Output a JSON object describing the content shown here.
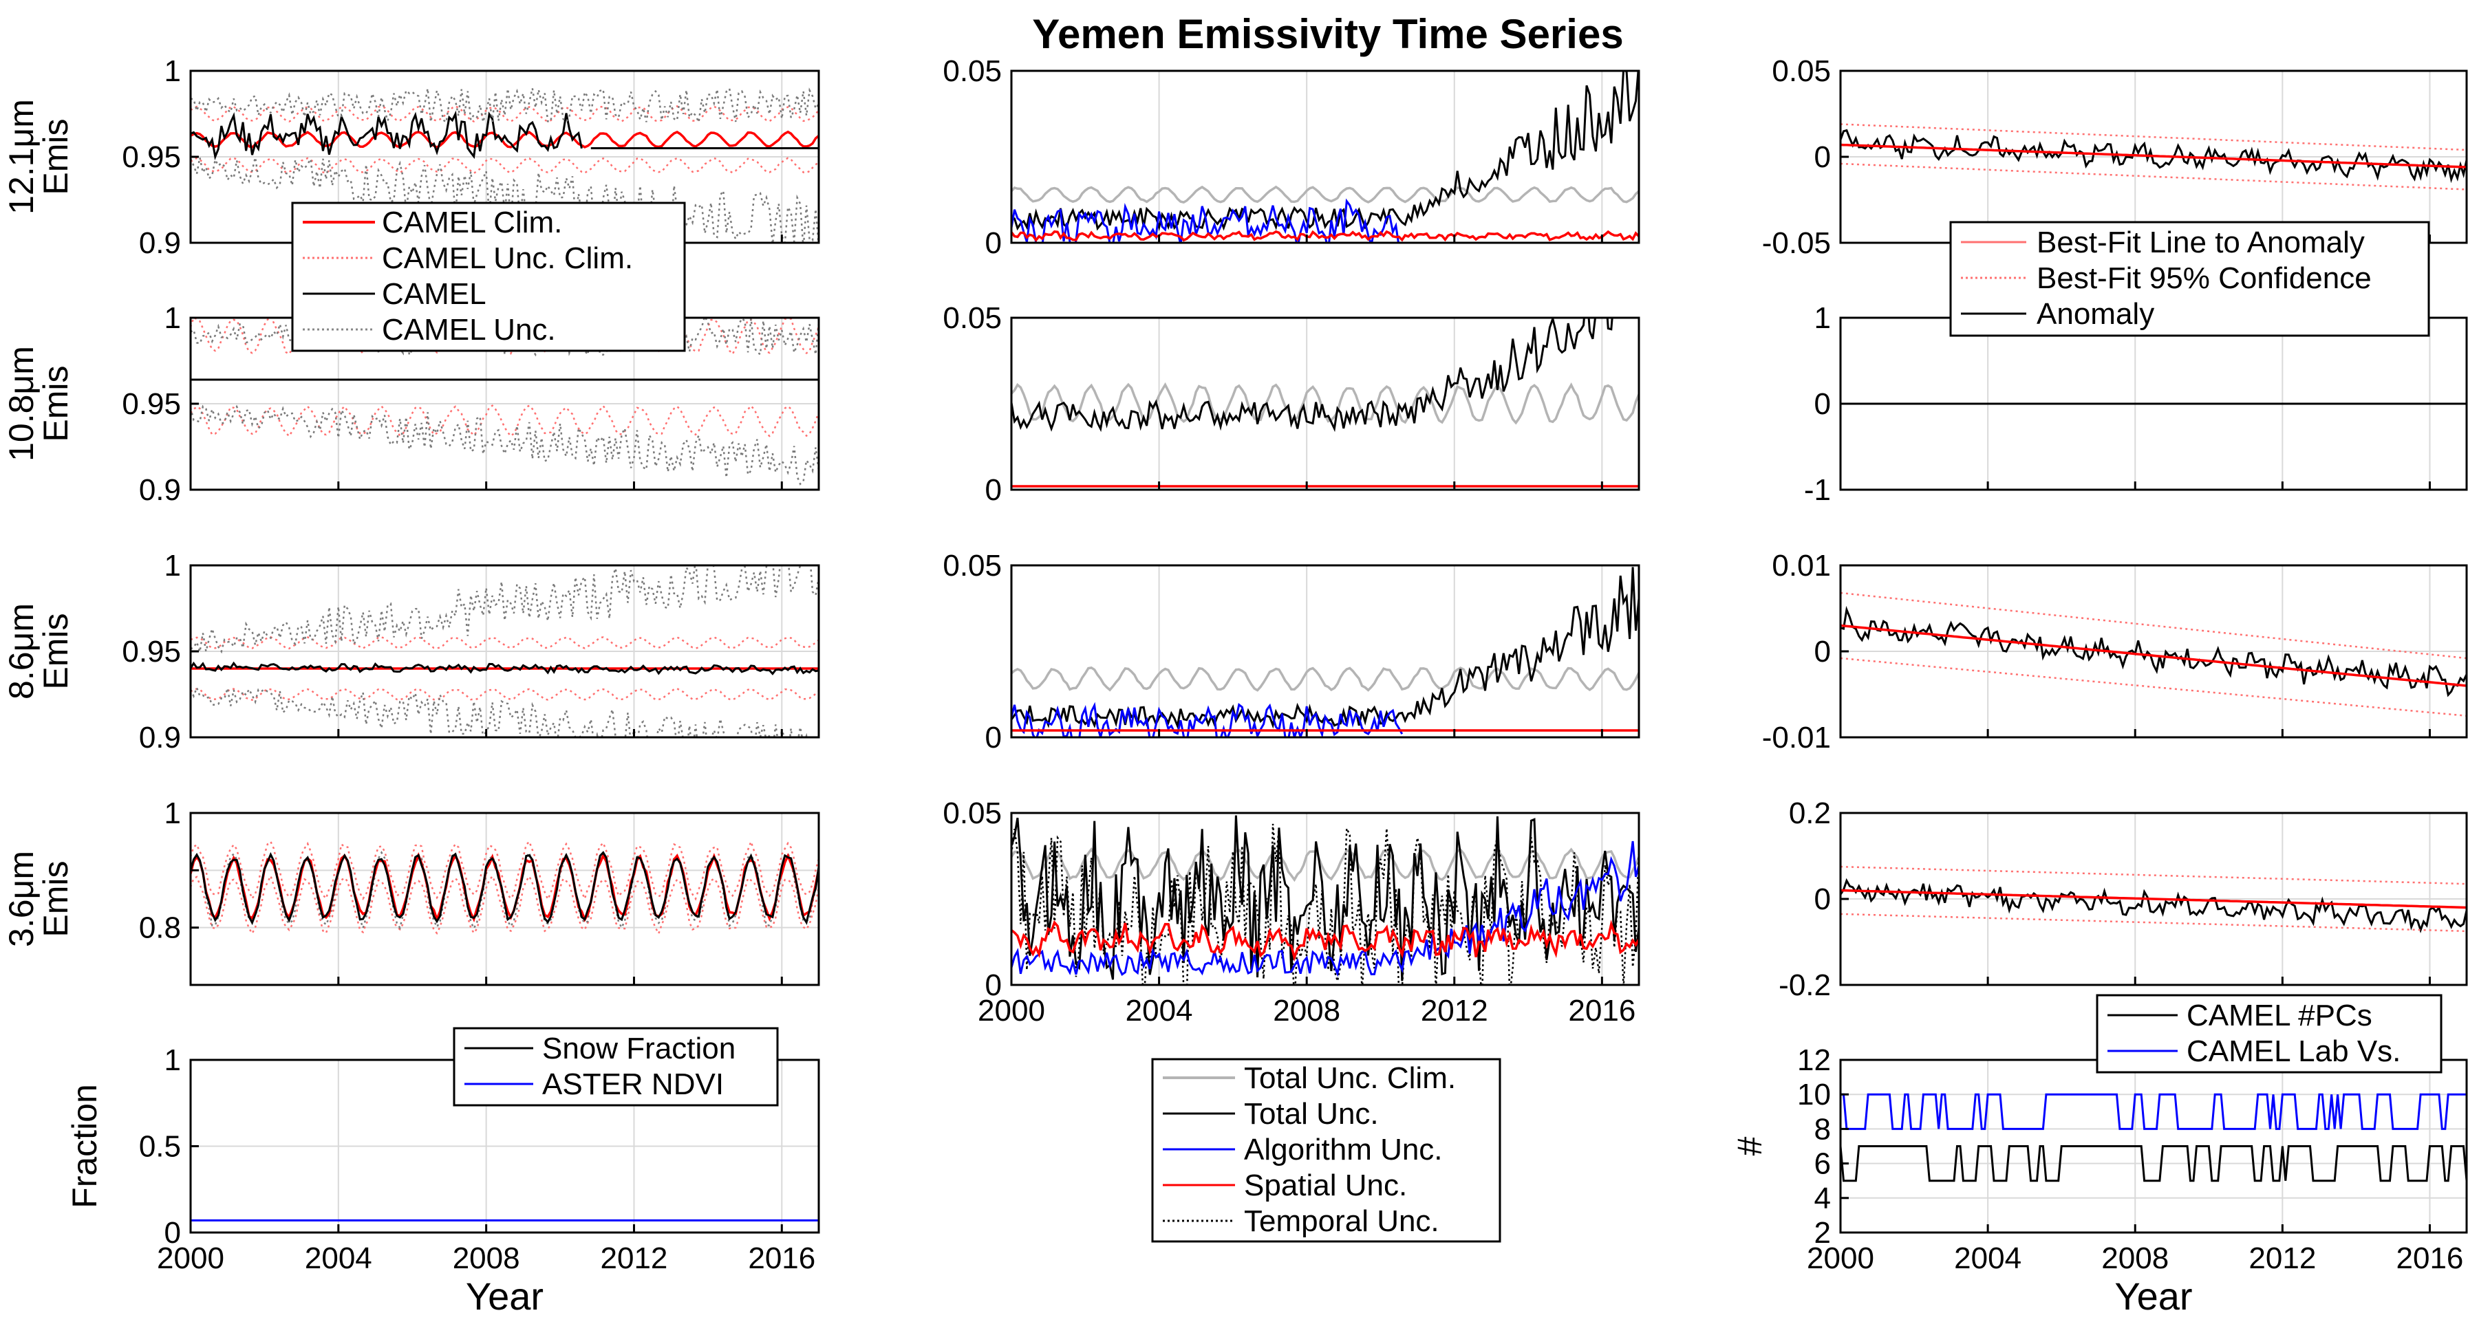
{
  "title": "Yemen Emissivity Time Series",
  "colors": {
    "black": "#000000",
    "red": "#ff0000",
    "lightred": "#ff7070",
    "blue": "#0000ff",
    "gray": "#b4b4b4",
    "grid": "#d9d9d9",
    "navy": "#000080"
  },
  "chart_data": [
    {
      "id": "p11",
      "type": "line",
      "ylabel": "12.1μm Emis",
      "ylabel_lines": [
        "12.1μm",
        "Emis"
      ],
      "ylim": [
        0.9,
        1.0
      ],
      "yticks": [
        0.9,
        0.95,
        1.0
      ],
      "ytick_labels": [
        "0.9",
        "0.95",
        "1"
      ],
      "xlim": [
        2000,
        2017
      ],
      "series": [
        {
          "name": "CAMEL Clim.",
          "style": "red",
          "kind": "seasonal",
          "base": 0.96,
          "amp": 0.004
        },
        {
          "name": "CAMEL Unc. Clim. (upper)",
          "style": "reddot",
          "kind": "seasonal",
          "base": 0.975,
          "amp": 0.004
        },
        {
          "name": "CAMEL Unc. Clim. (lower)",
          "style": "reddot",
          "kind": "seasonal",
          "base": 0.945,
          "amp": 0.004
        },
        {
          "name": "CAMEL",
          "style": "black",
          "kind": "noisy",
          "base": 0.963,
          "amp": 0.01,
          "end": 2010.6
        },
        {
          "name": "CAMEL (flat)",
          "style": "black",
          "kind": "flat",
          "base": 0.955,
          "start": 2010.8
        },
        {
          "name": "CAMEL Unc. (upper)",
          "style": "graydot",
          "kind": "spread",
          "base": 0.98,
          "amp": 0.01,
          "trend": 0.0
        },
        {
          "name": "CAMEL Unc. (lower)",
          "style": "graydot",
          "kind": "spread",
          "base": 0.945,
          "amp": 0.015,
          "trend": -0.002
        }
      ]
    },
    {
      "id": "p12",
      "type": "line",
      "ylim": [
        0,
        0.05
      ],
      "yticks": [
        0,
        0.05
      ],
      "ytick_labels": [
        "0",
        "0.05"
      ],
      "xlim": [
        2000,
        2017
      ],
      "series": [
        {
          "name": "Total Unc. Clim.",
          "style": "gray",
          "kind": "seasonal",
          "base": 0.014,
          "amp": 0.002
        },
        {
          "name": "Total Unc.",
          "style": "black",
          "kind": "growth",
          "base": 0.006,
          "amp": 0.006,
          "late": 0.04
        },
        {
          "name": "Algorithm Unc.",
          "style": "blue",
          "kind": "noisy",
          "base": 0.005,
          "amp": 0.006,
          "end": 2010.6
        },
        {
          "name": "Spatial Unc.",
          "style": "red",
          "kind": "noisy",
          "base": 0.002,
          "amp": 0.001
        }
      ]
    },
    {
      "id": "p13",
      "type": "line",
      "ylim": [
        -0.05,
        0.05
      ],
      "yticks": [
        -0.05,
        0,
        0.05
      ],
      "ytick_labels": [
        "-0.05",
        "0",
        "0.05"
      ],
      "xlim": [
        2000,
        2017
      ],
      "series": [
        {
          "name": "Anomaly",
          "style": "black",
          "kind": "noisy",
          "base": 0.008,
          "amp": 0.006,
          "trend": -0.0009
        },
        {
          "name": "Best-Fit Line to Anomaly",
          "style": "red",
          "kind": "line",
          "y0": 0.007,
          "y1": -0.006
        },
        {
          "name": "Best-Fit 95% Confidence (upper)",
          "style": "reddot",
          "kind": "line",
          "y0": 0.019,
          "y1": 0.004
        },
        {
          "name": "Best-Fit 95% Confidence (lower)",
          "style": "reddot",
          "kind": "line",
          "y0": -0.004,
          "y1": -0.019
        }
      ]
    },
    {
      "id": "p21",
      "type": "line",
      "ylabel": "10.8μm Emis",
      "ylabel_lines": [
        "10.8μm",
        "Emis"
      ],
      "ylim": [
        0.9,
        1.0
      ],
      "yticks": [
        0.9,
        0.95,
        1.0
      ],
      "ytick_labels": [
        "0.9",
        "0.95",
        "1"
      ],
      "xlim": [
        2000,
        2017
      ],
      "series": [
        {
          "name": "CAMEL Clim.",
          "style": "black",
          "kind": "flat",
          "base": 0.964
        },
        {
          "name": "CAMEL Unc. Clim. (upper)",
          "style": "reddot",
          "kind": "seasonal",
          "base": 0.99,
          "amp": 0.01
        },
        {
          "name": "CAMEL Unc. Clim. (lower)",
          "style": "reddot",
          "kind": "seasonal",
          "base": 0.94,
          "amp": 0.008
        },
        {
          "name": "CAMEL Unc. (upper)",
          "style": "graydot",
          "kind": "spread",
          "base": 0.99,
          "amp": 0.012,
          "trend": 0.0
        },
        {
          "name": "CAMEL Unc. (lower)",
          "style": "graydot",
          "kind": "spread",
          "base": 0.945,
          "amp": 0.012,
          "trend": -0.0018
        }
      ]
    },
    {
      "id": "p22",
      "type": "line",
      "ylim": [
        0,
        0.05
      ],
      "yticks": [
        0,
        0.05
      ],
      "ytick_labels": [
        "0",
        "0.05"
      ],
      "xlim": [
        2000,
        2017
      ],
      "series": [
        {
          "name": "Total Unc. Clim.",
          "style": "gray",
          "kind": "seasonal",
          "base": 0.025,
          "amp": 0.005
        },
        {
          "name": "Total Unc.",
          "style": "black",
          "kind": "growth",
          "base": 0.02,
          "amp": 0.008,
          "late": 0.04
        },
        {
          "name": "Spatial Unc.",
          "style": "red",
          "kind": "flat",
          "base": 0.001
        }
      ]
    },
    {
      "id": "p23",
      "type": "line",
      "ylim": [
        -1,
        1
      ],
      "yticks": [
        -1,
        0,
        1
      ],
      "ytick_labels": [
        "-1",
        "0",
        "1"
      ],
      "xlim": [
        2000,
        2017
      ],
      "series": [
        {
          "name": "Anomaly",
          "style": "black",
          "kind": "flat",
          "base": 0
        }
      ]
    },
    {
      "id": "p31",
      "type": "line",
      "ylabel": "8.6μm Emis",
      "ylabel_lines": [
        "8.6μm",
        "Emis"
      ],
      "ylim": [
        0.9,
        1.0
      ],
      "yticks": [
        0.9,
        0.95,
        1.0
      ],
      "ytick_labels": [
        "0.9",
        "0.95",
        "1"
      ],
      "xlim": [
        2000,
        2017
      ],
      "series": [
        {
          "name": "CAMEL Unc. Clim. (upper)",
          "style": "reddot",
          "kind": "seasonal",
          "base": 0.955,
          "amp": 0.003
        },
        {
          "name": "CAMEL Unc. Clim. (lower)",
          "style": "reddot",
          "kind": "seasonal",
          "base": 0.925,
          "amp": 0.003
        },
        {
          "name": "CAMEL Unc. (upper)",
          "style": "graydot",
          "kind": "spread",
          "base": 0.955,
          "amp": 0.015,
          "trend": 0.0025
        },
        {
          "name": "CAMEL Unc. (lower)",
          "style": "graydot",
          "kind": "spread",
          "base": 0.925,
          "amp": 0.012,
          "trend": -0.0018
        },
        {
          "name": "CAMEL Clim.",
          "style": "red",
          "kind": "flat",
          "base": 0.94
        },
        {
          "name": "CAMEL",
          "style": "black",
          "kind": "noisy",
          "base": 0.941,
          "amp": 0.002,
          "trend": -0.0001
        }
      ]
    },
    {
      "id": "p32",
      "type": "line",
      "ylim": [
        0,
        0.05
      ],
      "yticks": [
        0,
        0.05
      ],
      "ytick_labels": [
        "0",
        "0.05"
      ],
      "xlim": [
        2000,
        2017
      ],
      "series": [
        {
          "name": "Total Unc. Clim.",
          "style": "gray",
          "kind": "seasonal",
          "base": 0.017,
          "amp": 0.003
        },
        {
          "name": "Total Unc.",
          "style": "black",
          "kind": "growth",
          "base": 0.005,
          "amp": 0.006,
          "late": 0.035
        },
        {
          "name": "Algorithm Unc.",
          "style": "blue",
          "kind": "noisy",
          "base": 0.004,
          "amp": 0.005,
          "end": 2010.6
        },
        {
          "name": "Spatial Unc.",
          "style": "red",
          "kind": "flat",
          "base": 0.002
        }
      ]
    },
    {
      "id": "p33",
      "type": "line",
      "ylim": [
        -0.01,
        0.01
      ],
      "yticks": [
        -0.01,
        0,
        0.01
      ],
      "ytick_labels": [
        "-0.01",
        "0",
        "0.01"
      ],
      "xlim": [
        2000,
        2017
      ],
      "series": [
        {
          "name": "Anomaly",
          "style": "black",
          "kind": "noisy",
          "base": 0.003,
          "amp": 0.0015,
          "trend": -0.0004
        },
        {
          "name": "Best-Fit Line to Anomaly",
          "style": "red",
          "kind": "line",
          "y0": 0.003,
          "y1": -0.004
        },
        {
          "name": "Best-Fit 95% Confidence (upper)",
          "style": "reddot",
          "kind": "line",
          "y0": 0.0068,
          "y1": -0.0008
        },
        {
          "name": "Best-Fit 95% Confidence (lower)",
          "style": "reddot",
          "kind": "line",
          "y0": -0.0008,
          "y1": -0.0075
        }
      ]
    },
    {
      "id": "p41",
      "type": "line",
      "ylabel": "3.6μm Emis",
      "ylabel_lines": [
        "3.6μm",
        "Emis"
      ],
      "ylim": [
        0.7,
        1.0
      ],
      "yticks": [
        0.8,
        0.9,
        1.0
      ],
      "ytick_labels": [
        "0.8",
        "",
        "1"
      ],
      "xlim": [
        2000,
        2017
      ],
      "series": [
        {
          "name": "CAMEL Unc. Clim. (upper)",
          "style": "reddot",
          "kind": "seasonal",
          "base": 0.9,
          "amp": 0.045
        },
        {
          "name": "CAMEL Unc. Clim. (lower)",
          "style": "reddot",
          "kind": "seasonal",
          "base": 0.84,
          "amp": 0.045
        },
        {
          "name": "CAMEL Unc.",
          "style": "graydot",
          "kind": "seasonal",
          "base": 0.865,
          "amp": 0.06
        },
        {
          "name": "CAMEL Clim.",
          "style": "red",
          "kind": "seasonal",
          "base": 0.87,
          "amp": 0.05
        },
        {
          "name": "CAMEL",
          "style": "black",
          "kind": "seasonal",
          "base": 0.87,
          "amp": 0.055
        }
      ]
    },
    {
      "id": "p42",
      "type": "line",
      "ylim": [
        0,
        0.05
      ],
      "yticks": [
        0,
        0.05
      ],
      "ytick_labels": [
        "0",
        "0.05"
      ],
      "xlim": [
        2000,
        2017
      ],
      "xticks": [
        2000,
        2004,
        2008,
        2012,
        2016
      ],
      "xtick_labels": [
        "2000",
        "2004",
        "2008",
        "2012",
        "2016"
      ],
      "series": [
        {
          "name": "Total Unc. Clim.",
          "style": "gray",
          "kind": "seasonal",
          "base": 0.035,
          "amp": 0.004
        },
        {
          "name": "Temporal Unc.",
          "style": "blackdot",
          "kind": "spiky",
          "base": 0.02,
          "amp": 0.02
        },
        {
          "name": "Total Unc.",
          "style": "black",
          "kind": "spiky",
          "base": 0.025,
          "amp": 0.018
        },
        {
          "name": "Algorithm Unc.",
          "style": "blue",
          "kind": "growth",
          "base": 0.005,
          "amp": 0.007,
          "late": 0.03
        },
        {
          "name": "Spatial Unc.",
          "style": "red",
          "kind": "noisy",
          "base": 0.013,
          "amp": 0.004
        }
      ]
    },
    {
      "id": "p43",
      "type": "line",
      "ylim": [
        -0.2,
        0.2
      ],
      "yticks": [
        -0.2,
        0,
        0.2
      ],
      "ytick_labels": [
        "-0.2",
        "0",
        "0.2"
      ],
      "xlim": [
        2000,
        2017
      ],
      "series": [
        {
          "name": "Anomaly",
          "style": "black",
          "kind": "noisy",
          "base": 0.02,
          "amp": 0.025,
          "trend": -0.004
        },
        {
          "name": "Best-Fit Line to Anomaly",
          "style": "red",
          "kind": "line",
          "y0": 0.02,
          "y1": -0.02
        },
        {
          "name": "Best-Fit 95% Confidence (upper)",
          "style": "reddot",
          "kind": "line",
          "y0": 0.075,
          "y1": 0.035
        },
        {
          "name": "Best-Fit 95% Confidence (lower)",
          "style": "reddot",
          "kind": "line",
          "y0": -0.035,
          "y1": -0.075
        }
      ]
    },
    {
      "id": "p51",
      "type": "line",
      "ylabel": "Fraction",
      "ylabel_lines": [
        "Fraction"
      ],
      "xlabel": "Year",
      "ylim": [
        0,
        1
      ],
      "yticks": [
        0,
        0.5,
        1
      ],
      "ytick_labels": [
        "0",
        "0.5",
        "1"
      ],
      "xlim": [
        2000,
        2017
      ],
      "xticks": [
        2000,
        2004,
        2008,
        2012,
        2016
      ],
      "xtick_labels": [
        "2000",
        "2004",
        "2008",
        "2012",
        "2016"
      ],
      "series": [
        {
          "name": "Snow Fraction",
          "style": "black",
          "kind": "flat",
          "base": 0
        },
        {
          "name": "ASTER NDVI",
          "style": "blue",
          "kind": "flat",
          "base": 0.07
        }
      ]
    },
    {
      "id": "p53",
      "type": "line",
      "ylabel": "#",
      "ylabel_lines": [
        "#"
      ],
      "xlabel": "Year",
      "ylim": [
        2,
        12
      ],
      "yticks": [
        2,
        4,
        6,
        8,
        10,
        12
      ],
      "ytick_labels": [
        "2",
        "4",
        "6",
        "8",
        "10",
        "12"
      ],
      "xlim": [
        2000,
        2017
      ],
      "xticks": [
        2000,
        2004,
        2008,
        2012,
        2016
      ],
      "xtick_labels": [
        "2000",
        "2004",
        "2008",
        "2012",
        "2016"
      ],
      "series": [
        {
          "name": "CAMEL #PCs",
          "style": "black",
          "kind": "steps",
          "hi": 7,
          "lo": 5
        },
        {
          "name": "CAMEL Lab Vs.",
          "style": "blue",
          "kind": "steps",
          "hi": 10,
          "lo": 8
        }
      ]
    }
  ],
  "legends": {
    "left": [
      "CAMEL Clim.",
      "CAMEL Unc. Clim.",
      "CAMEL",
      "CAMEL Unc."
    ],
    "right": [
      "Best-Fit Line to Anomaly",
      "Best-Fit 95% Confidence",
      "Anomaly"
    ],
    "snow": [
      "Snow Fraction",
      "ASTER NDVI"
    ],
    "middle": [
      "Total Unc. Clim.",
      "Total Unc.",
      "Algorithm Unc.",
      "Spatial Unc.",
      "Temporal Unc."
    ],
    "pcs": [
      "CAMEL #PCs",
      "CAMEL Lab Vs."
    ]
  },
  "labels": {
    "year_left": "Year",
    "year_right": "Year"
  }
}
